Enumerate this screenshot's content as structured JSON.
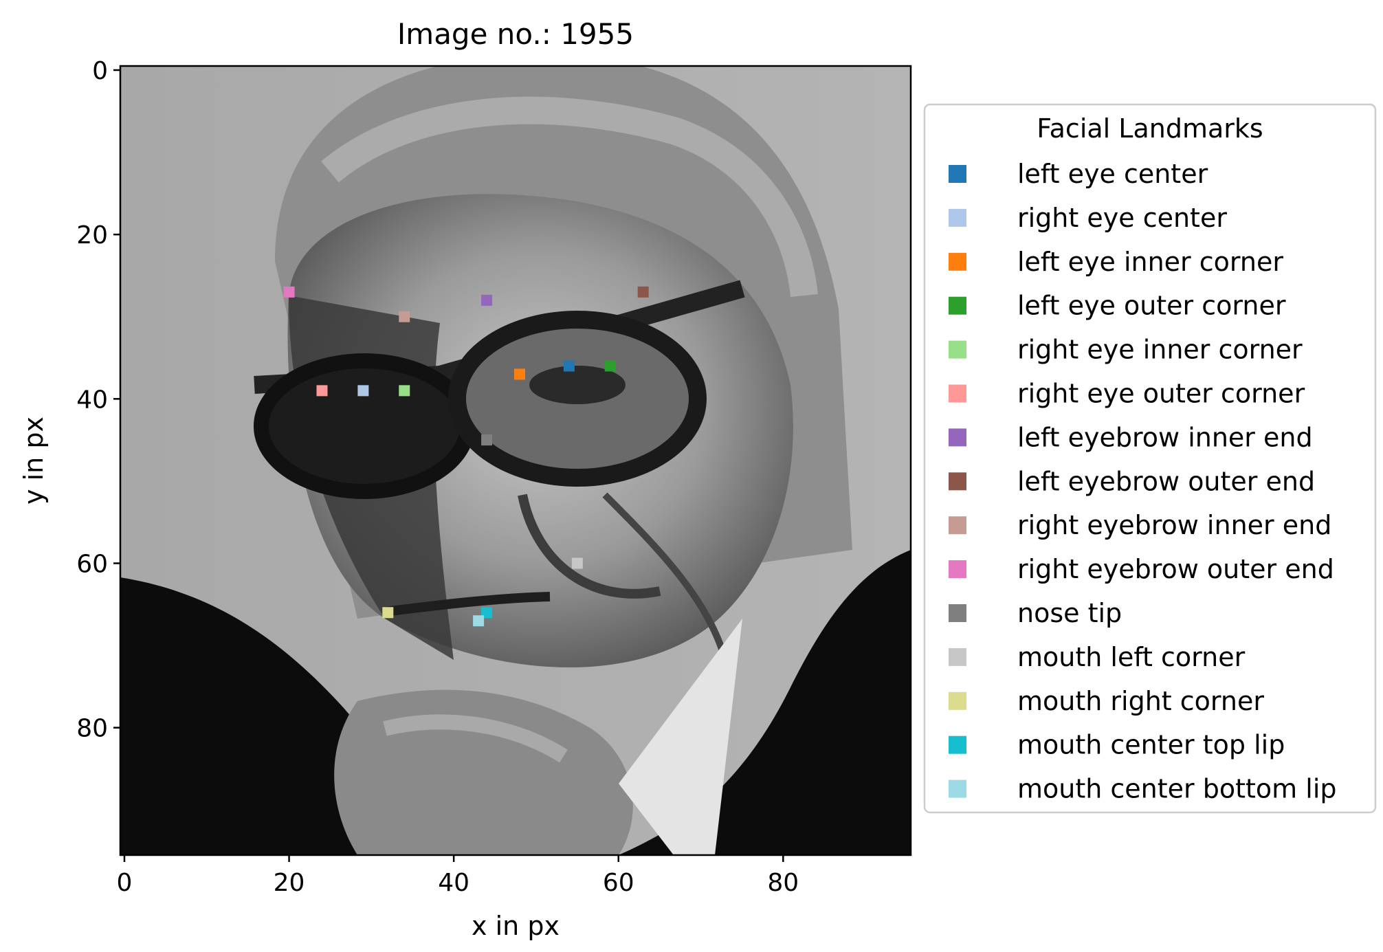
{
  "chart_data": {
    "type": "scatter",
    "title": "Image no.: 1955",
    "xlabel": "x in px",
    "ylabel": "y in px",
    "xlim": [
      -0.5,
      95.5
    ],
    "ylim": [
      95.5,
      -0.5
    ],
    "y_inverted": true,
    "grid": false,
    "background": "96x96 grayscale photograph of an elderly man with glasses, hand on chin",
    "x_ticks": [
      0,
      20,
      40,
      60,
      80
    ],
    "y_ticks": [
      0,
      20,
      40,
      60,
      80
    ],
    "legend": {
      "title": "Facial Landmarks",
      "placement": "outside-right"
    },
    "series": [
      {
        "name": "left eye center",
        "color": "#1f77b4",
        "x": 54,
        "y": 36
      },
      {
        "name": "right eye center",
        "color": "#aec7e8",
        "x": 29,
        "y": 39
      },
      {
        "name": "left eye inner corner",
        "color": "#ff7f0e",
        "x": 48,
        "y": 37
      },
      {
        "name": "left eye outer corner",
        "color": "#2ca02c",
        "x": 59,
        "y": 36
      },
      {
        "name": "right eye inner corner",
        "color": "#98df8a",
        "x": 34,
        "y": 39
      },
      {
        "name": "right eye outer corner",
        "color": "#ff9896",
        "x": 24,
        "y": 39
      },
      {
        "name": "left eyebrow inner end",
        "color": "#9467bd",
        "x": 44,
        "y": 28
      },
      {
        "name": "left eyebrow outer end",
        "color": "#8c564b",
        "x": 63,
        "y": 27
      },
      {
        "name": "right eyebrow inner end",
        "color": "#c49c94",
        "x": 34,
        "y": 30
      },
      {
        "name": "right eyebrow outer end",
        "color": "#e377c2",
        "x": 20,
        "y": 27
      },
      {
        "name": "nose tip",
        "color": "#7f7f7f",
        "x": 44,
        "y": 45
      },
      {
        "name": "mouth left corner",
        "color": "#c7c7c7",
        "x": 55,
        "y": 60
      },
      {
        "name": "mouth right corner",
        "color": "#dbdb8d",
        "x": 32,
        "y": 66
      },
      {
        "name": "mouth center top lip",
        "color": "#17becf",
        "x": 44,
        "y": 66
      },
      {
        "name": "mouth center bottom lip",
        "color": "#9edae5",
        "x": 43,
        "y": 67
      }
    ]
  }
}
